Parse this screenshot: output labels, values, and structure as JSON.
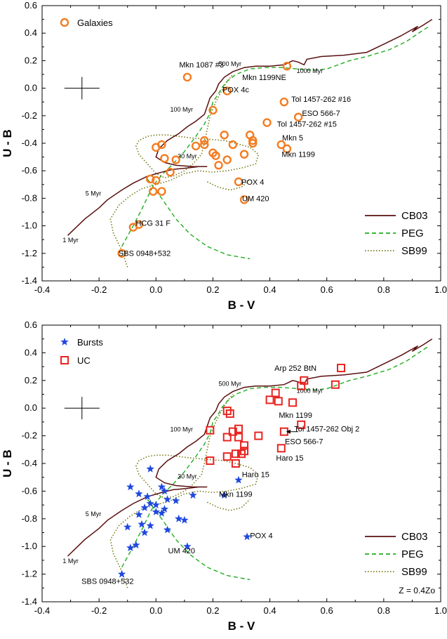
{
  "chart_data": [
    {
      "type": "scatter",
      "xlabel": "B - V",
      "ylabel": "U - B",
      "xlim": [
        -0.4,
        1.0
      ],
      "ylim": [
        -1.4,
        0.6
      ],
      "x_ticks": [
        "-0.4",
        "-0.2",
        "0.0",
        "0.2",
        "0.4",
        "0.6",
        "0.8",
        "1.0"
      ],
      "y_ticks": [
        "0.6",
        "0.4",
        "0.2",
        "0.0",
        "-0.2",
        "-0.4",
        "-0.6",
        "-0.8",
        "-1.0",
        "-1.2",
        "-1.4"
      ],
      "error_cross": {
        "x": -0.26,
        "y": 0.0
      },
      "legend_top": {
        "label": "Galaxies",
        "marker": "circle",
        "color": "#f47c20"
      },
      "legend_bottom": [
        {
          "label": "CB03",
          "style": "solid",
          "color": "#5a0f0f"
        },
        {
          "label": "PEG",
          "style": "dashed",
          "color": "#21ad21"
        },
        {
          "label": "SB99",
          "style": "dotted",
          "color": "#7a7a1a"
        }
      ],
      "age_labels": [
        {
          "text": "500 Myr",
          "x": 0.26,
          "y": 0.16
        },
        {
          "text": "1000 Myr",
          "x": 0.54,
          "y": 0.11
        },
        {
          "text": "100 Myr",
          "x": 0.09,
          "y": -0.17
        },
        {
          "text": "30 Myr",
          "x": 0.11,
          "y": -0.51
        },
        {
          "text": "5 Myr",
          "x": -0.22,
          "y": -0.78
        },
        {
          "text": "1 Myr",
          "x": -0.3,
          "y": -1.12
        }
      ],
      "annotations": [
        {
          "text": "Mkn 1087 #3",
          "x": 0.16,
          "y": 0.15
        },
        {
          "text": "Mkn 1199NE",
          "x": 0.38,
          "y": 0.06
        },
        {
          "text": "POX 4c",
          "x": 0.28,
          "y": -0.03
        },
        {
          "text": "Tol 1457-262 #16",
          "x": 0.58,
          "y": -0.1
        },
        {
          "text": "ESO 566-7",
          "x": 0.58,
          "y": -0.2
        },
        {
          "text": "Tol 1457-262 #15",
          "x": 0.53,
          "y": -0.28
        },
        {
          "text": "Mkn 5",
          "x": 0.48,
          "y": -0.38
        },
        {
          "text": "Mkn 1199",
          "x": 0.5,
          "y": -0.5
        },
        {
          "text": "POX 4",
          "x": 0.34,
          "y": -0.7
        },
        {
          "text": "UM 420",
          "x": 0.35,
          "y": -0.82
        },
        {
          "text": "HCG 31 F",
          "x": -0.01,
          "y": -1.0
        },
        {
          "text": "SBS 0948+532",
          "x": -0.04,
          "y": -1.22
        }
      ],
      "series": [
        {
          "name": "Galaxies",
          "marker": "circle",
          "color": "#f47c20",
          "points": [
            [
              0.11,
              0.08
            ],
            [
              0.46,
              0.16
            ],
            [
              0.25,
              -0.02
            ],
            [
              0.2,
              -0.16
            ],
            [
              0.45,
              -0.1
            ],
            [
              0.5,
              -0.21
            ],
            [
              0.39,
              -0.25
            ],
            [
              0.24,
              -0.34
            ],
            [
              0.33,
              -0.34
            ],
            [
              0.34,
              -0.38
            ],
            [
              0.34,
              -0.4
            ],
            [
              0.27,
              -0.41
            ],
            [
              0.17,
              -0.38
            ],
            [
              0.17,
              -0.41
            ],
            [
              0.14,
              -0.42
            ],
            [
              0.44,
              -0.41
            ],
            [
              0.46,
              -0.44
            ],
            [
              0.2,
              -0.47
            ],
            [
              0.21,
              -0.49
            ],
            [
              0.31,
              -0.48
            ],
            [
              0.25,
              -0.52
            ],
            [
              0.22,
              -0.56
            ],
            [
              0.0,
              -0.43
            ],
            [
              0.02,
              -0.41
            ],
            [
              0.03,
              -0.51
            ],
            [
              0.07,
              -0.52
            ],
            [
              -0.02,
              -0.66
            ],
            [
              0.0,
              -0.67
            ],
            [
              0.05,
              -0.61
            ],
            [
              -0.01,
              -0.75
            ],
            [
              0.02,
              -0.75
            ],
            [
              0.29,
              -0.68
            ],
            [
              0.31,
              -0.81
            ],
            [
              -0.08,
              -1.01
            ],
            [
              -0.06,
              -0.99
            ],
            [
              -0.12,
              -1.2
            ]
          ]
        }
      ]
    },
    {
      "type": "scatter",
      "xlabel": "B - V",
      "ylabel": "U - B",
      "xlim": [
        -0.4,
        1.0
      ],
      "ylim": [
        -1.4,
        0.6
      ],
      "x_ticks": [
        "-0.4",
        "-0.2",
        "0.0",
        "0.2",
        "0.4",
        "0.6",
        "0.8",
        "1.0"
      ],
      "y_ticks": [
        "0.6",
        "0.4",
        "0.2",
        "0.0",
        "-0.2",
        "-0.4",
        "-0.6",
        "-0.8",
        "-1.0",
        "-1.2",
        "-1.4"
      ],
      "error_cross": {
        "x": -0.26,
        "y": 0.0
      },
      "metallicity_note": "Z = 0.4Zo",
      "legend_top": [
        {
          "label": "Bursts",
          "marker": "star",
          "color": "#1f48e0"
        },
        {
          "label": "UC",
          "marker": "square",
          "color": "#e8231f"
        }
      ],
      "legend_bottom": [
        {
          "label": "CB03",
          "style": "solid",
          "color": "#5a0f0f"
        },
        {
          "label": "PEG",
          "style": "dashed",
          "color": "#21ad21"
        },
        {
          "label": "SB99",
          "style": "dotted",
          "color": "#7a7a1a"
        }
      ],
      "age_labels": [
        {
          "text": "500 Myr",
          "x": 0.26,
          "y": 0.16
        },
        {
          "text": "1000 Myr",
          "x": 0.54,
          "y": 0.11
        },
        {
          "text": "100 Myr",
          "x": 0.09,
          "y": -0.17
        },
        {
          "text": "30 Myr",
          "x": 0.11,
          "y": -0.51
        },
        {
          "text": "5 Myr",
          "x": -0.22,
          "y": -0.78
        },
        {
          "text": "1 Myr",
          "x": -0.3,
          "y": -1.12
        }
      ],
      "annotations": [
        {
          "text": "Arp 252 BtN",
          "x": 0.49,
          "y": 0.27
        },
        {
          "text": "Mkn 1199",
          "x": 0.49,
          "y": -0.07
        },
        {
          "text": "Tol 1457-262 Obj 2",
          "x": 0.6,
          "y": -0.17
        },
        {
          "text": "ESO 566-7",
          "x": 0.52,
          "y": -0.26
        },
        {
          "text": "Haro 15",
          "x": 0.47,
          "y": -0.38
        },
        {
          "text": "Haro 15",
          "x": 0.35,
          "y": -0.5
        },
        {
          "text": "Mkn 1199",
          "x": 0.28,
          "y": -0.64
        },
        {
          "text": "POX 4",
          "x": 0.37,
          "y": -0.94
        },
        {
          "text": "UM 420",
          "x": 0.09,
          "y": -1.05
        },
        {
          "text": "SBS 0948+532",
          "x": -0.17,
          "y": -1.27
        }
      ],
      "series": [
        {
          "name": "Bursts",
          "marker": "star",
          "color": "#1f48e0",
          "points": [
            [
              -0.02,
              -0.44
            ],
            [
              -0.06,
              -0.62
            ],
            [
              -0.09,
              -0.57
            ],
            [
              0.02,
              -0.57
            ],
            [
              0.03,
              -0.6
            ],
            [
              -0.03,
              -0.64
            ],
            [
              0.04,
              -0.66
            ],
            [
              0.07,
              -0.67
            ],
            [
              0.13,
              -0.63
            ],
            [
              -0.02,
              -0.69
            ],
            [
              0.0,
              -0.7
            ],
            [
              0.03,
              -0.73
            ],
            [
              -0.04,
              -0.72
            ],
            [
              0.0,
              -0.75
            ],
            [
              -0.06,
              -0.77
            ],
            [
              0.02,
              -0.76
            ],
            [
              -0.05,
              -0.84
            ],
            [
              -0.02,
              -0.85
            ],
            [
              -0.1,
              -0.86
            ],
            [
              -0.04,
              -0.9
            ],
            [
              0.04,
              -0.88
            ],
            [
              0.08,
              -0.8
            ],
            [
              0.1,
              -0.81
            ],
            [
              -0.09,
              -1.01
            ],
            [
              -0.07,
              -0.99
            ],
            [
              0.11,
              -1.0
            ],
            [
              -0.12,
              -1.2
            ],
            [
              0.29,
              -0.52
            ],
            [
              0.24,
              -0.63
            ],
            [
              0.32,
              -0.93
            ]
          ]
        },
        {
          "name": "UC",
          "marker": "square",
          "color": "#e8231f",
          "points": [
            [
              0.65,
              0.29
            ],
            [
              0.52,
              0.2
            ],
            [
              0.51,
              0.16
            ],
            [
              0.63,
              0.17
            ],
            [
              0.4,
              0.06
            ],
            [
              0.42,
              0.11
            ],
            [
              0.43,
              0.05
            ],
            [
              0.48,
              0.04
            ],
            [
              0.25,
              -0.02
            ],
            [
              0.26,
              -0.04
            ],
            [
              0.51,
              -0.12
            ],
            [
              0.45,
              -0.17
            ],
            [
              0.19,
              -0.16
            ],
            [
              0.27,
              -0.17
            ],
            [
              0.29,
              -0.15
            ],
            [
              0.25,
              -0.21
            ],
            [
              0.29,
              -0.21
            ],
            [
              0.36,
              -0.2
            ],
            [
              0.31,
              -0.27
            ],
            [
              0.31,
              -0.31
            ],
            [
              0.44,
              -0.29
            ],
            [
              0.28,
              -0.33
            ],
            [
              0.3,
              -0.33
            ],
            [
              0.25,
              -0.35
            ],
            [
              0.19,
              -0.38
            ],
            [
              0.28,
              -0.4
            ]
          ]
        }
      ]
    }
  ]
}
